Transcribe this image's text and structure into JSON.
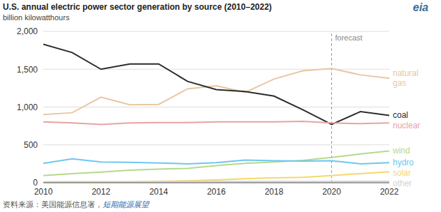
{
  "chart_data": {
    "type": "line",
    "title": "U.S. annual electric power sector generation by source (2010–2022)",
    "subtitle": "billion kilowatthours",
    "logo": "eia",
    "source": {
      "label": "资料来源：美国能源信息署，",
      "link": "短期能源展望"
    },
    "forecast": {
      "x": 2020,
      "label": "forecast"
    },
    "x": [
      2010,
      2011,
      2012,
      2013,
      2014,
      2015,
      2016,
      2017,
      2018,
      2019,
      2020,
      2021,
      2022
    ],
    "xlim": [
      2010,
      2022
    ],
    "xticks": [
      2010,
      2012,
      2014,
      2016,
      2018,
      2020,
      2022
    ],
    "ylim": [
      0,
      2000
    ],
    "yticks": [
      0,
      500,
      {
        "value": 1000,
        "label": "1,000"
      },
      {
        "value": 1500,
        "label": "1,500"
      },
      {
        "value": 2000,
        "label": "2,000"
      }
    ],
    "grid": true,
    "series": [
      {
        "name": "natural gas",
        "color": "#e8c6a2",
        "values": [
          900,
          925,
          1130,
          1030,
          1035,
          1240,
          1280,
          1195,
          1370,
          1480,
          1510,
          1425,
          1380
        ]
      },
      {
        "name": "coal",
        "color": "#2b2b2b",
        "values": [
          1830,
          1720,
          1500,
          1570,
          1570,
          1340,
          1230,
          1205,
          1145,
          965,
          770,
          940,
          890
        ]
      },
      {
        "name": "nuclear",
        "color": "#e6a3a3",
        "values": [
          805,
          790,
          770,
          790,
          795,
          795,
          805,
          805,
          805,
          810,
          790,
          780,
          790
        ]
      },
      {
        "name": "wind",
        "color": "#b5d98a",
        "values": [
          95,
          120,
          140,
          165,
          180,
          190,
          225,
          255,
          275,
          295,
          335,
          380,
          420
        ]
      },
      {
        "name": "hydro",
        "color": "#6cc7f0",
        "values": [
          255,
          315,
          275,
          270,
          260,
          250,
          265,
          300,
          290,
          285,
          290,
          250,
          265
        ]
      },
      {
        "name": "solar",
        "color": "#f5d76e",
        "values": [
          1,
          2,
          4,
          9,
          18,
          25,
          36,
          53,
          64,
          72,
          95,
          120,
          145
        ]
      },
      {
        "name": "other",
        "color": "#d3d3d3",
        "values": [
          12,
          13,
          13,
          14,
          14,
          15,
          15,
          16,
          16,
          17,
          17,
          18,
          18
        ]
      }
    ]
  }
}
